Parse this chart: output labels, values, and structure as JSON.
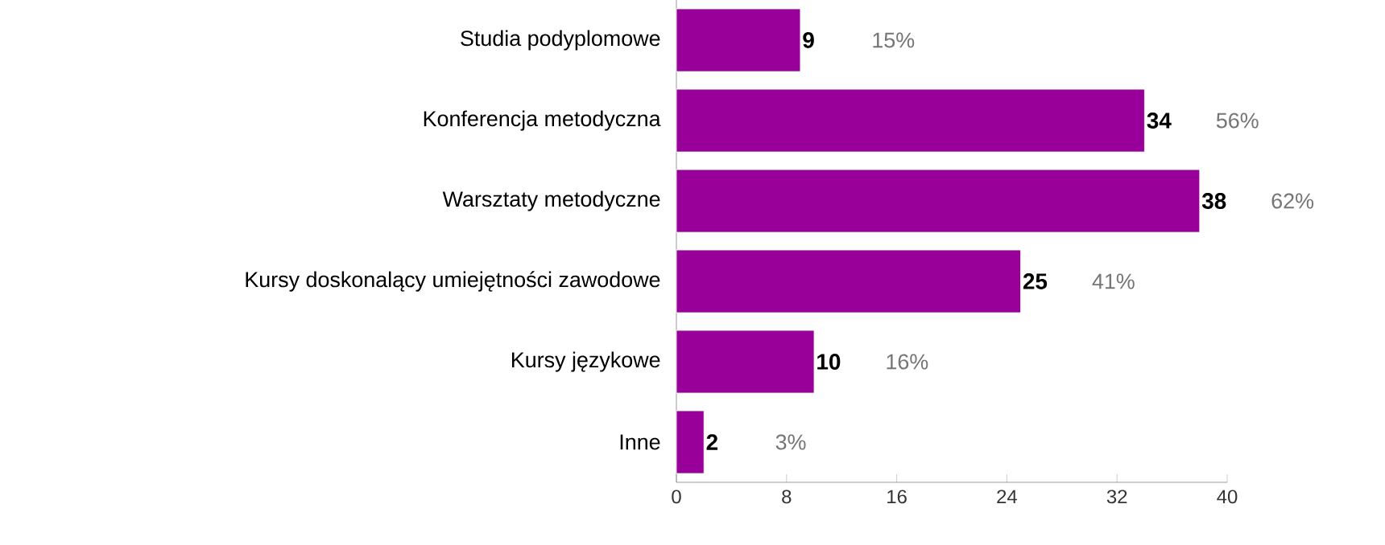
{
  "chart_data": {
    "type": "bar",
    "orientation": "horizontal",
    "categories": [
      "Studia podyplomowe",
      "Konferencja metodyczna",
      "Warsztaty metodyczne",
      "Kursy doskonalący umiejętności zawodowe",
      "Kursy językowe",
      "Inne"
    ],
    "values": [
      9,
      34,
      38,
      25,
      10,
      2
    ],
    "color": "#990099",
    "data_labels": true,
    "annotations": [
      "15%",
      "56%",
      "62%",
      "41%",
      "16%",
      "3%"
    ],
    "xlim": [
      0,
      40
    ],
    "xticks": [
      0,
      8,
      16,
      24,
      32,
      40
    ],
    "grid": false
  }
}
